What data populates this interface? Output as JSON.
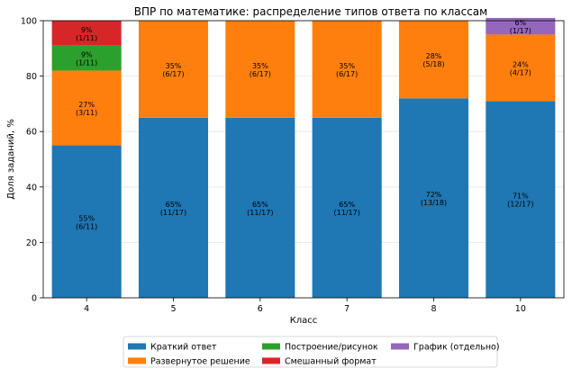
{
  "chart_data": {
    "type": "bar",
    "stacked": true,
    "title": "ВПР по математике: распределение типов ответа по классам",
    "xlabel": "Класс",
    "ylabel": "Доля заданий, %",
    "categories": [
      "4",
      "5",
      "6",
      "7",
      "8",
      "10"
    ],
    "ylim": [
      0,
      100
    ],
    "yticks": [
      0,
      20,
      40,
      60,
      80,
      100
    ],
    "grid": true,
    "legend_position": "bottom",
    "series": [
      {
        "name": "Краткий ответ",
        "color": "#1f77b4",
        "values": [
          55,
          65,
          65,
          65,
          72,
          71
        ],
        "labels": [
          [
            "55%",
            "(6/11)"
          ],
          [
            "65%",
            "(11/17)"
          ],
          [
            "65%",
            "(11/17)"
          ],
          [
            "65%",
            "(11/17)"
          ],
          [
            "72%",
            "(13/18)"
          ],
          [
            "71%",
            "(12/17)"
          ]
        ]
      },
      {
        "name": "Развернутое решение",
        "color": "#ff7f0e",
        "values": [
          27,
          35,
          35,
          35,
          28,
          24
        ],
        "labels": [
          [
            "27%",
            "(3/11)"
          ],
          [
            "35%",
            "(6/17)"
          ],
          [
            "35%",
            "(6/17)"
          ],
          [
            "35%",
            "(6/17)"
          ],
          [
            "28%",
            "(5/18)"
          ],
          [
            "24%",
            "(4/17)"
          ]
        ]
      },
      {
        "name": "Построение/рисунок",
        "color": "#2ca02c",
        "values": [
          9,
          0,
          0,
          0,
          0,
          0
        ],
        "labels": [
          [
            "9%",
            "(1/11)"
          ],
          null,
          null,
          null,
          null,
          null
        ]
      },
      {
        "name": "Смешанный формат",
        "color": "#d62728",
        "values": [
          9,
          0,
          0,
          0,
          0,
          0
        ],
        "labels": [
          [
            "9%",
            "(1/11)"
          ],
          null,
          null,
          null,
          null,
          null
        ]
      },
      {
        "name": "График (отдельно)",
        "color": "#9467bd",
        "values": [
          0,
          0,
          0,
          0,
          0,
          6
        ],
        "labels": [
          null,
          null,
          null,
          null,
          null,
          [
            "6%",
            "(1/17)"
          ]
        ]
      }
    ]
  }
}
